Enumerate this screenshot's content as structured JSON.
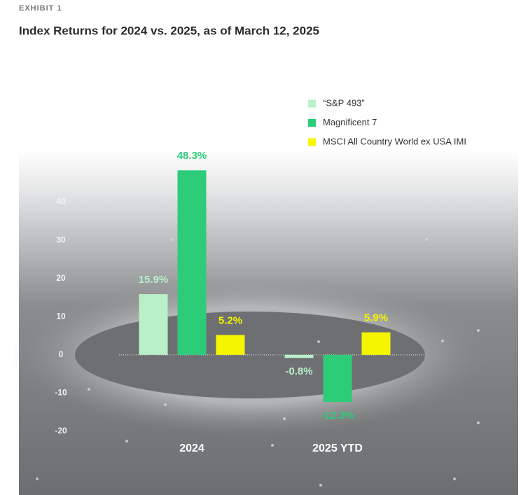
{
  "chart_data": {
    "type": "bar",
    "kicker": "EXHIBIT 1",
    "title": "Index Returns for 2024 vs. 2025, as of March 12, 2025",
    "categories": [
      "2024",
      "2025 YTD"
    ],
    "series": [
      {
        "name": "“S&P 493”",
        "color": "#b9f0c8",
        "values": [
          15.9,
          -0.8
        ],
        "value_labels": [
          "15.9%",
          "-0.8%"
        ]
      },
      {
        "name": "Magnificent 7",
        "color": "#2dcc78",
        "values": [
          48.3,
          -12.3
        ],
        "value_labels": [
          "48.3%",
          "-12.3%"
        ]
      },
      {
        "name": "MSCI All Country World ex USA IMI",
        "color": "#f5f500",
        "values": [
          5.2,
          5.9
        ],
        "value_labels": [
          "5.2%",
          "5.9%"
        ]
      }
    ],
    "ylim": [
      -20,
      50
    ],
    "yticks": [
      -20,
      -10,
      0,
      10,
      20,
      30,
      40
    ],
    "legend": "top-right"
  }
}
